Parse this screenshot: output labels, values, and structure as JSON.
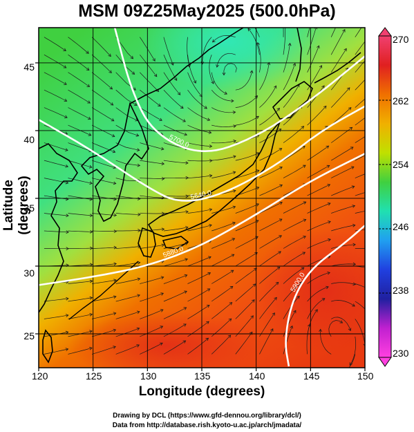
{
  "title": "MSM 09Z25May2025 (500.0hPa)",
  "xlabel": "Longitude (degrees)",
  "ylabel": "Latitude  (degrees)",
  "credits": [
    "Drawing by DCL (https://www.gfd-dennou.org/library/dcl/)",
    "Data from http://database.rish.kyoto-u.ac.jp/arch/jmadata/"
  ],
  "x_ticks": [
    "120",
    "125",
    "130",
    "135",
    "140",
    "145",
    "150"
  ],
  "y_ticks": [
    "45",
    "40",
    "35",
    "30",
    "25"
  ],
  "colorbar": {
    "ticks": [
      "270",
      "262",
      "254",
      "246",
      "238",
      "230"
    ],
    "colors": [
      "#f04070",
      "#e02020",
      "#f07000",
      "#f0b000",
      "#c0e000",
      "#40d040",
      "#20e0b0",
      "#20a0f0",
      "#2040e0",
      "#2020a0",
      "#c020d0",
      "#ff40e0"
    ]
  },
  "chart_data": {
    "type": "heatmap",
    "title": "MSM 09Z25May2025 (500.0hPa)",
    "xlabel": "Longitude (degrees)",
    "ylabel": "Latitude  (degrees)",
    "xlim": [
      120,
      150
    ],
    "ylim": [
      22.5,
      47.6
    ],
    "clim": [
      230,
      270
    ],
    "colorbar_ticks": [
      270,
      262,
      254,
      246,
      238,
      230
    ],
    "contours": [
      {
        "label": "5640.0",
        "points": [
          [
            120,
            40.8
          ],
          [
            125,
            38.5
          ],
          [
            130,
            35.8
          ],
          [
            133,
            34.6
          ],
          [
            137,
            35.3
          ],
          [
            142,
            37.5
          ],
          [
            146,
            40
          ],
          [
            150,
            41.8
          ]
        ]
      },
      {
        "label": "5700.0",
        "points": [
          [
            127,
            47.6
          ],
          [
            128.5,
            43
          ],
          [
            130.5,
            39.8
          ],
          [
            135,
            38.1
          ],
          [
            140,
            39.5
          ],
          [
            145,
            42.2
          ],
          [
            150,
            45.5
          ]
        ]
      },
      {
        "label": "5880.0",
        "points": [
          [
            120,
            28.6
          ],
          [
            125,
            29.2
          ],
          [
            130,
            30.0
          ],
          [
            135,
            31.5
          ],
          [
            140,
            33.8
          ],
          [
            145,
            36.3
          ],
          [
            150,
            38.3
          ]
        ]
      },
      {
        "label": "5900.0",
        "points": [
          [
            143,
            22.6
          ],
          [
            142.6,
            24.5
          ],
          [
            143.3,
            27.5
          ],
          [
            145,
            29.8
          ],
          [
            148,
            31.6
          ],
          [
            150,
            33
          ]
        ]
      }
    ]
  }
}
